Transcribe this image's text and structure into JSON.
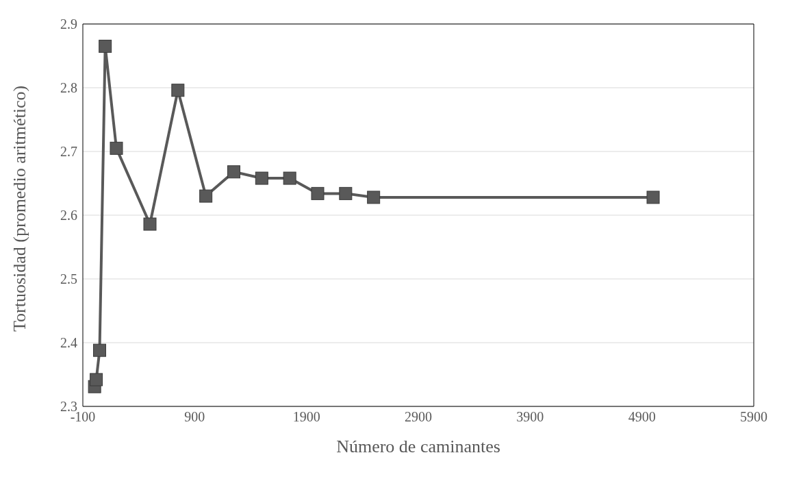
{
  "chart_data": {
    "type": "line",
    "xlabel": "Número de caminantes",
    "ylabel": "Tortuosidad (promedio aritmético)",
    "x": [
      5,
      20,
      50,
      100,
      200,
      500,
      750,
      1000,
      1250,
      1500,
      1750,
      2000,
      2250,
      2500,
      5000
    ],
    "values": [
      2.331,
      2.342,
      2.388,
      2.865,
      2.705,
      2.586,
      2.796,
      2.63,
      2.668,
      2.658,
      2.658,
      2.634,
      2.634,
      2.628,
      2.628
    ],
    "color": "#595959",
    "marker": "square",
    "line_style": "solid",
    "xlim": [
      -100,
      5900
    ],
    "xticks": [
      -100,
      900,
      1900,
      2900,
      3900,
      4900,
      5900
    ],
    "ylim": [
      2.3,
      2.9
    ],
    "yticks": [
      2.3,
      2.4,
      2.5,
      2.6,
      2.7,
      2.8,
      2.9
    ],
    "grid": "y",
    "legend": false
  }
}
